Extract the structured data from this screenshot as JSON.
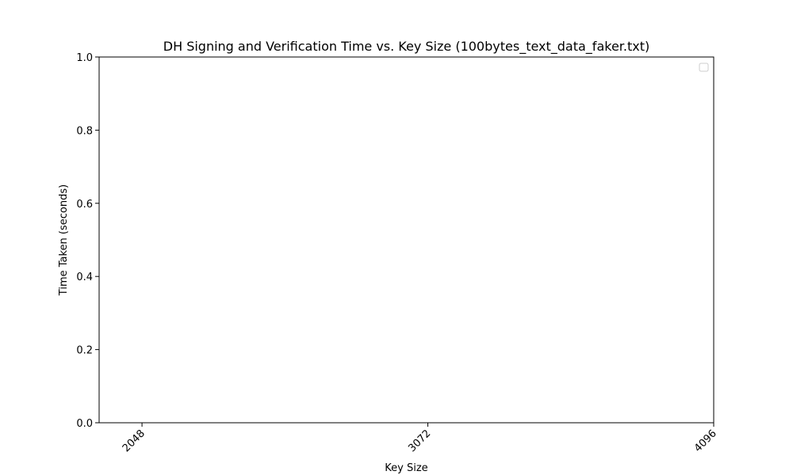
{
  "chart_data": {
    "type": "line",
    "title": "DH Signing and Verification Time vs. Key Size (100bytes_text_data_faker.txt)",
    "xlabel": "Key Size",
    "ylabel": "Time Taken (seconds)",
    "x": [
      2048,
      3072,
      4096
    ],
    "x_tick_labels": [
      "2048",
      "3072",
      "4096"
    ],
    "xlim": [
      1894.4,
      4096
    ],
    "ylim": [
      0,
      1
    ],
    "y_ticks": [
      0,
      0.2,
      0.4,
      0.6,
      0.8,
      1.0
    ],
    "y_tick_labels": [
      "0.0",
      "0.2",
      "0.4",
      "0.6",
      "0.8",
      "1.0"
    ],
    "series": [],
    "grid": false,
    "legend": {
      "placement": "top-right",
      "entries": []
    }
  }
}
